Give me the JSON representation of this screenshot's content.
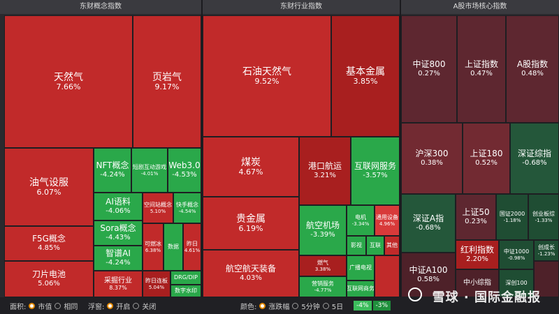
{
  "panels": {
    "concept": {
      "title": "东财概念指数"
    },
    "industry": {
      "title": "东财行业指数"
    },
    "core": {
      "title": "A股市场核心指数"
    }
  },
  "concept": [
    {
      "name": "天然气",
      "value": "7.66%"
    },
    {
      "name": "页岩气",
      "value": "9.17%"
    },
    {
      "name": "油气设服",
      "value": "6.07%"
    },
    {
      "name": "NFT概念",
      "value": "-4.24%"
    },
    {
      "name": "短剧互动游戏",
      "value": "-4.01%"
    },
    {
      "name": "Web3.0",
      "value": "-4.53%"
    },
    {
      "name": "AI语料",
      "value": "-4.06%"
    },
    {
      "name": "空间站概念",
      "value": "5.10%"
    },
    {
      "name": "快手概念",
      "value": "-4.54%"
    },
    {
      "name": "Sora概念",
      "value": "-4.43%"
    },
    {
      "name": "F5G概念",
      "value": "4.85%"
    },
    {
      "name": "智谱AI",
      "value": "-4.24%"
    },
    {
      "name": "可燃冰",
      "value": "6.38%"
    },
    {
      "name": "数据",
      "value": ""
    },
    {
      "name": "昨日",
      "value": "4.61%"
    },
    {
      "name": "刀片电池",
      "value": "5.06%"
    },
    {
      "name": "采掘行业",
      "value": "8.37%"
    },
    {
      "name": "昨日连板",
      "value": "5.04%"
    },
    {
      "name": "DRG/DIP",
      "value": ""
    },
    {
      "name": "数字水印",
      "value": ""
    }
  ],
  "industry": [
    {
      "name": "石油天然气",
      "value": "9.52%"
    },
    {
      "name": "基本金属",
      "value": "3.85%"
    },
    {
      "name": "煤炭",
      "value": "4.67%"
    },
    {
      "name": "港口航运",
      "value": "3.21%"
    },
    {
      "name": "互联网服务",
      "value": "-3.57%"
    },
    {
      "name": "贵金属",
      "value": "6.19%"
    },
    {
      "name": "航空机场",
      "value": "-3.39%"
    },
    {
      "name": "电机",
      "value": "-3.34%"
    },
    {
      "name": "通用设备",
      "value": "4.96%"
    },
    {
      "name": "影视",
      "value": ""
    },
    {
      "name": "互联",
      "value": ""
    },
    {
      "name": "其他",
      "value": ""
    },
    {
      "name": "航空航天装备",
      "value": "4.03%"
    },
    {
      "name": "燃气",
      "value": "3.38%"
    },
    {
      "name": "广播电视",
      "value": ""
    },
    {
      "name": "营销服务",
      "value": "-4.77%"
    },
    {
      "name": "互联网商务",
      "value": ""
    }
  ],
  "core": [
    {
      "name": "中证800",
      "value": "0.27%"
    },
    {
      "name": "上证指数",
      "value": "0.47%"
    },
    {
      "name": "A股指数",
      "value": "0.48%"
    },
    {
      "name": "沪深300",
      "value": "0.38%"
    },
    {
      "name": "上证180",
      "value": "0.52%"
    },
    {
      "name": "深证综指",
      "value": "-0.68%"
    },
    {
      "name": "深证A指",
      "value": "-0.68%"
    },
    {
      "name": "上证50",
      "value": "0.23%"
    },
    {
      "name": "国证2000",
      "value": "-1.18%"
    },
    {
      "name": "创业板综",
      "value": "-1.33%"
    },
    {
      "name": "红利指数",
      "value": "2.20%"
    },
    {
      "name": "中证1000",
      "value": "-0.98%"
    },
    {
      "name": "创成长",
      "value": "-1.23%"
    },
    {
      "name": "中证A100",
      "value": "0.58%"
    },
    {
      "name": "中小综指",
      "value": ""
    },
    {
      "name": "深创100",
      "value": ""
    }
  ],
  "bottombar": {
    "area_label": "面积:",
    "area_opt1": "市值",
    "area_opt2": "相同",
    "float_label": "浮窗:",
    "float_opt1": "开启",
    "float_opt2": "关闭",
    "color_label": "颜色:",
    "color_opt1": "涨跌幅",
    "color_opt2": "5分钟",
    "color_opt3": "5日",
    "legend": [
      "-4%",
      "-3%"
    ]
  },
  "watermark": "雪球 · 国际金融报",
  "colors": {
    "up": "#c12a2a",
    "down": "#2aa84a",
    "muted_up": "#5e2730",
    "muted_down": "#24573a",
    "accent": "#e58a00"
  }
}
